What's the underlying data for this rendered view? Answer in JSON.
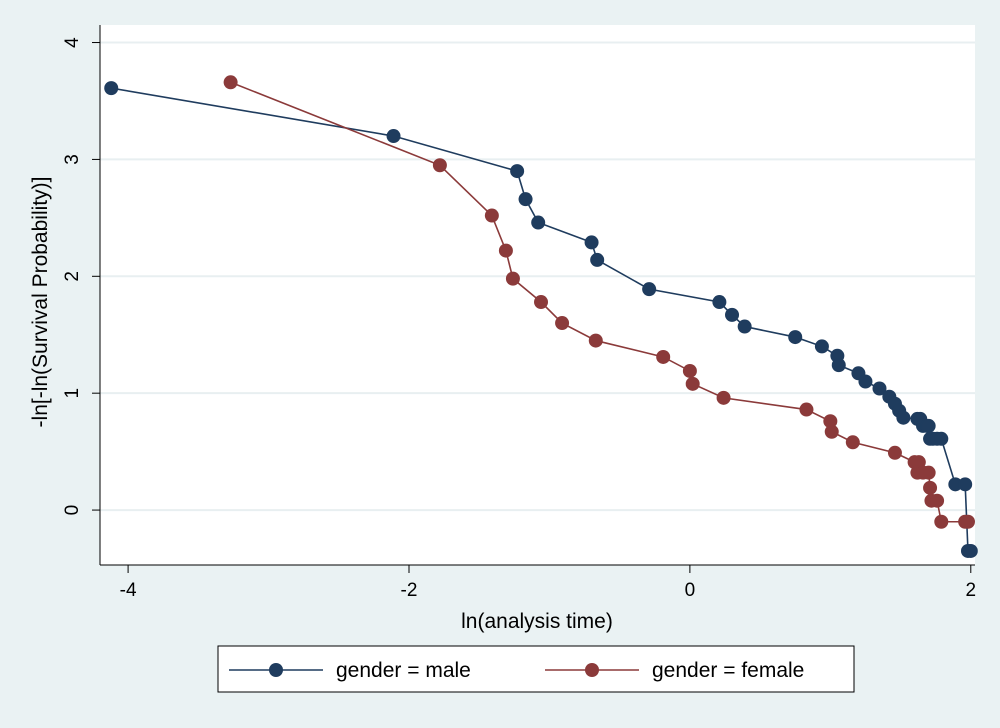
{
  "chart_data": {
    "type": "line",
    "title": "",
    "xlabel": "ln(analysis time)",
    "ylabel": "-ln[-ln(Survival Probability)]",
    "xlim": [
      -4.2,
      2.03
    ],
    "ylim": [
      -0.47,
      4.15
    ],
    "xticks": [
      -4,
      -2,
      0,
      2
    ],
    "yticks": [
      0,
      1,
      2,
      3,
      4
    ],
    "xtick_labels": [
      "-4",
      "-2",
      "0",
      "2"
    ],
    "ytick_labels": [
      "0",
      "1",
      "2",
      "3",
      "4"
    ],
    "grid": "horizontal",
    "legend_position": "bottom",
    "series": [
      {
        "name": "gender = male",
        "color": "#1f3c5e",
        "points": [
          [
            -4.12,
            3.61
          ],
          [
            -2.11,
            3.2
          ],
          [
            -1.23,
            2.9
          ],
          [
            -1.17,
            2.66
          ],
          [
            -1.08,
            2.46
          ],
          [
            -0.7,
            2.29
          ],
          [
            -0.66,
            2.14
          ],
          [
            -0.29,
            1.89
          ],
          [
            0.21,
            1.78
          ],
          [
            0.3,
            1.67
          ],
          [
            0.39,
            1.57
          ],
          [
            0.75,
            1.48
          ],
          [
            0.94,
            1.4
          ],
          [
            1.05,
            1.32
          ],
          [
            1.06,
            1.24
          ],
          [
            1.2,
            1.17
          ],
          [
            1.25,
            1.1
          ],
          [
            1.35,
            1.04
          ],
          [
            1.42,
            0.97
          ],
          [
            1.46,
            0.91
          ],
          [
            1.49,
            0.85
          ],
          [
            1.52,
            0.79
          ],
          [
            1.62,
            0.78
          ],
          [
            1.64,
            0.78
          ],
          [
            1.66,
            0.72
          ],
          [
            1.69,
            0.72
          ],
          [
            1.7,
            0.72
          ],
          [
            1.71,
            0.61
          ],
          [
            1.73,
            0.61
          ],
          [
            1.76,
            0.61
          ],
          [
            1.79,
            0.61
          ],
          [
            1.89,
            0.22
          ],
          [
            1.96,
            0.22
          ],
          [
            1.98,
            -0.35
          ],
          [
            2.0,
            -0.35
          ]
        ]
      },
      {
        "name": "gender = female",
        "color": "#8b3a3a",
        "points": [
          [
            -3.27,
            3.66
          ],
          [
            -1.78,
            2.95
          ],
          [
            -1.41,
            2.52
          ],
          [
            -1.31,
            2.22
          ],
          [
            -1.26,
            1.98
          ],
          [
            -1.06,
            1.78
          ],
          [
            -0.91,
            1.6
          ],
          [
            -0.67,
            1.45
          ],
          [
            -0.19,
            1.31
          ],
          [
            0.0,
            1.19
          ],
          [
            0.02,
            1.08
          ],
          [
            0.24,
            0.96
          ],
          [
            0.83,
            0.86
          ],
          [
            1.0,
            0.76
          ],
          [
            1.01,
            0.67
          ],
          [
            1.16,
            0.58
          ],
          [
            1.46,
            0.49
          ],
          [
            1.6,
            0.41
          ],
          [
            1.63,
            0.41
          ],
          [
            1.62,
            0.32
          ],
          [
            1.66,
            0.32
          ],
          [
            1.7,
            0.32
          ],
          [
            1.71,
            0.19
          ],
          [
            1.72,
            0.08
          ],
          [
            1.76,
            0.08
          ],
          [
            1.79,
            -0.1
          ],
          [
            1.96,
            -0.1
          ],
          [
            1.98,
            -0.1
          ]
        ]
      }
    ]
  }
}
